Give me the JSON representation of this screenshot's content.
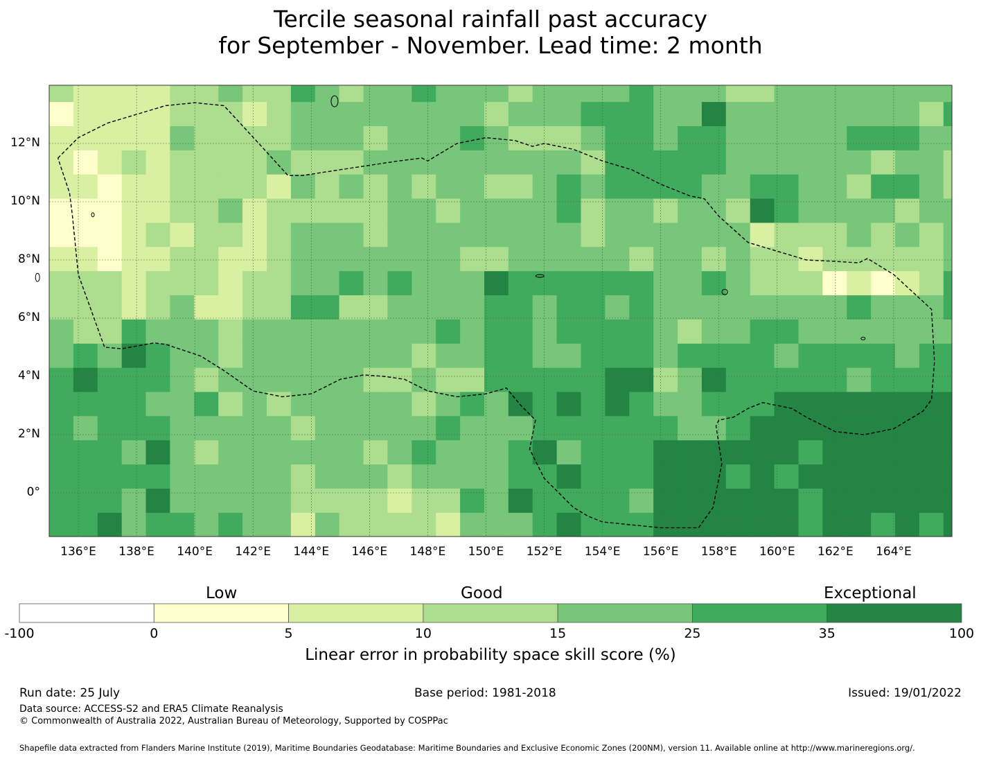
{
  "title": {
    "line1": "Tercile seasonal rainfall past accuracy",
    "line2": "for September - November. Lead time: 2 month"
  },
  "map": {
    "extent": {
      "lon_min": 135,
      "lon_max": 166,
      "lat_min": -1.5,
      "lat_max": 14
    },
    "lat_ticks": [
      {
        "value": 12,
        "label": "12°N"
      },
      {
        "value": 10,
        "label": "10°N"
      },
      {
        "value": 8,
        "label": "8°N"
      },
      {
        "value": 6,
        "label": "6°N"
      },
      {
        "value": 4,
        "label": "4°N"
      },
      {
        "value": 2,
        "label": "2°N"
      },
      {
        "value": 0,
        "label": "0°"
      }
    ],
    "lon_ticks": [
      {
        "value": 136,
        "label": "136°E"
      },
      {
        "value": 138,
        "label": "138°E"
      },
      {
        "value": 140,
        "label": "140°E"
      },
      {
        "value": 142,
        "label": "142°E"
      },
      {
        "value": 144,
        "label": "144°E"
      },
      {
        "value": 146,
        "label": "146°E"
      },
      {
        "value": 148,
        "label": "148°E"
      },
      {
        "value": 150,
        "label": "150°E"
      },
      {
        "value": 152,
        "label": "152°E"
      },
      {
        "value": 154,
        "label": "154°E"
      },
      {
        "value": 156,
        "label": "156°E"
      },
      {
        "value": 158,
        "label": "158°E"
      },
      {
        "value": 160,
        "label": "160°E"
      },
      {
        "value": 162,
        "label": "162°E"
      },
      {
        "value": 164,
        "label": "164°E"
      }
    ],
    "grid": true,
    "eez_boundary_lonlat": [
      [
        135.3,
        11.5
      ],
      [
        136.0,
        12.2
      ],
      [
        137.0,
        12.7
      ],
      [
        138.0,
        13.0
      ],
      [
        139.0,
        13.3
      ],
      [
        140.0,
        13.4
      ],
      [
        141.0,
        13.3
      ],
      [
        142.2,
        12.0
      ],
      [
        143.2,
        10.9
      ],
      [
        143.7,
        10.9
      ],
      [
        145.0,
        11.1
      ],
      [
        147.0,
        11.4
      ],
      [
        147.8,
        11.5
      ],
      [
        148.0,
        11.4
      ],
      [
        149.0,
        12.0
      ],
      [
        150.0,
        12.2
      ],
      [
        151.0,
        12.1
      ],
      [
        151.6,
        11.9
      ],
      [
        152.0,
        12.0
      ],
      [
        153.0,
        11.8
      ],
      [
        154.0,
        11.4
      ],
      [
        155.0,
        11.1
      ],
      [
        156.0,
        10.6
      ],
      [
        157.0,
        10.2
      ],
      [
        157.5,
        10.1
      ],
      [
        158.0,
        9.5
      ],
      [
        159.0,
        8.6
      ],
      [
        160.0,
        8.3
      ],
      [
        161.0,
        8.0
      ],
      [
        162.0,
        7.95
      ],
      [
        162.8,
        7.9
      ],
      [
        163.1,
        8.05
      ],
      [
        164.0,
        7.5
      ],
      [
        165.3,
        6.3
      ],
      [
        165.4,
        4.5
      ],
      [
        165.3,
        3.2
      ],
      [
        165.0,
        2.8
      ],
      [
        164.0,
        2.2
      ],
      [
        163.0,
        2.0
      ],
      [
        162.0,
        2.1
      ],
      [
        161.0,
        2.6
      ],
      [
        160.5,
        2.9
      ],
      [
        160.0,
        3.0
      ],
      [
        159.5,
        3.1
      ],
      [
        159.0,
        2.9
      ],
      [
        158.5,
        2.6
      ],
      [
        158.0,
        2.5
      ],
      [
        157.9,
        2.3
      ],
      [
        158.1,
        1.0
      ],
      [
        157.8,
        -0.5
      ],
      [
        157.3,
        -1.2
      ],
      [
        156.0,
        -1.2
      ],
      [
        154.0,
        -1.0
      ],
      [
        153.5,
        -0.8
      ],
      [
        153.0,
        -0.5
      ],
      [
        152.5,
        0.0
      ],
      [
        152.0,
        0.5
      ],
      [
        151.5,
        1.5
      ],
      [
        151.7,
        2.5
      ],
      [
        151.2,
        3.0
      ],
      [
        150.7,
        3.6
      ],
      [
        150.0,
        3.4
      ],
      [
        149.0,
        3.3
      ],
      [
        148.0,
        3.5
      ],
      [
        147.2,
        3.9
      ],
      [
        146.5,
        4.0
      ],
      [
        145.8,
        4.05
      ],
      [
        145.0,
        3.9
      ],
      [
        144.0,
        3.4
      ],
      [
        143.0,
        3.3
      ],
      [
        142.0,
        3.5
      ],
      [
        141.0,
        4.2
      ],
      [
        140.2,
        4.7
      ],
      [
        139.0,
        5.1
      ],
      [
        138.6,
        5.15
      ],
      [
        137.5,
        4.95
      ],
      [
        136.9,
        5.0
      ],
      [
        136.0,
        7.5
      ],
      [
        135.8,
        9.5
      ],
      [
        135.7,
        10.3
      ],
      [
        135.3,
        11.5
      ]
    ],
    "legend_colors_by_class": [
      "#ffffff",
      "#ffffcc",
      "#d9f0a3",
      "#addd8e",
      "#78c679",
      "#41ab5d",
      "#238443"
    ]
  },
  "colorbar": {
    "category_labels": [
      "Low",
      "Good",
      "Exceptional"
    ],
    "tick_labels": [
      "-100",
      "0",
      "5",
      "10",
      "15",
      "25",
      "35",
      "100"
    ],
    "colors": [
      "#ffffff",
      "#ffffcc",
      "#d9f0a3",
      "#addd8e",
      "#78c679",
      "#41ab5d",
      "#238443"
    ],
    "title": "Linear error in probability space skill score (%)"
  },
  "footer": {
    "run_date": "Run date: 25 July",
    "base_period": "Base period: 1981-2018",
    "issued": "Issued: 19/01/2022",
    "data_source": "Data source: ACCESS-S2 and ERA5 Climate Reanalysis",
    "copyright": "© Commonwealth of Australia 2022, Australian Bureau of Meteorology, Supported by COSPPac",
    "shapefile": "Shapefile data extracted from Flanders Marine Institute (2019), Maritime Boundaries Geodatabase: Maritime Boundaries and Exclusive Economic Zones (200NM), version 11. Available online at http://www.marineregions.org/."
  }
}
